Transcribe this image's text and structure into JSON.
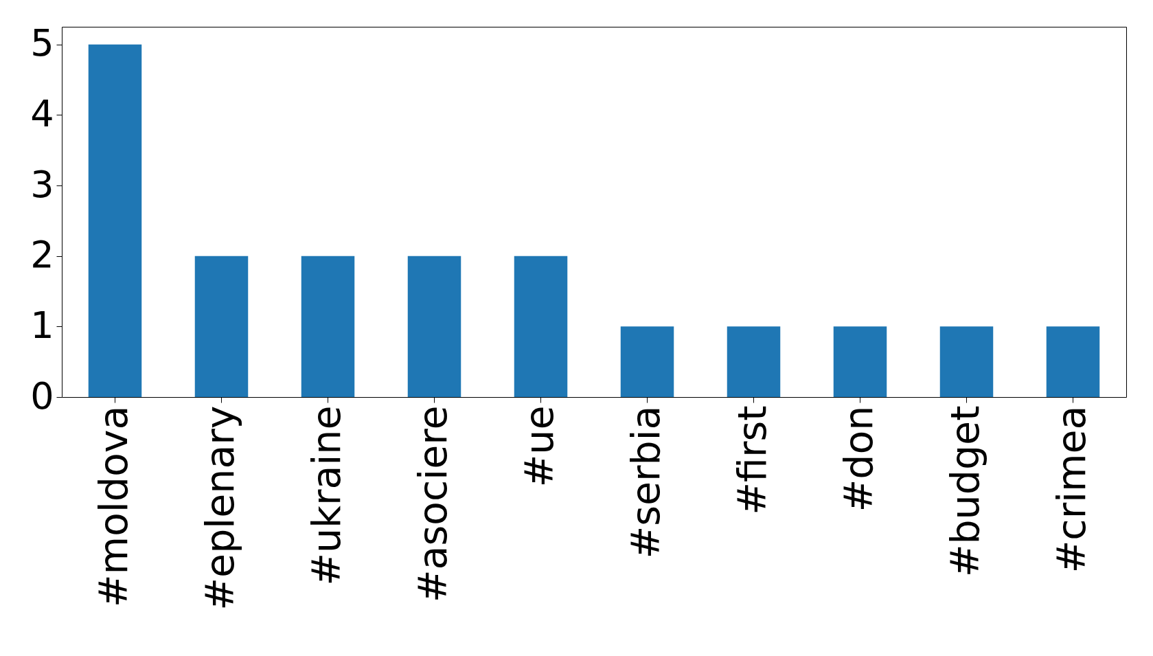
{
  "chart_data": {
    "type": "bar",
    "categories": [
      "#moldova",
      "#eplenary",
      "#ukraine",
      "#asociere",
      "#ue",
      "#serbia",
      "#first",
      "#don",
      "#budget",
      "#crimea"
    ],
    "values": [
      5,
      2,
      2,
      2,
      2,
      1,
      1,
      1,
      1,
      1
    ],
    "color": "#1f77b4",
    "ylim": [
      0,
      5.25
    ],
    "yticks": [
      0,
      1,
      2,
      3,
      4,
      5
    ],
    "grid": false
  }
}
